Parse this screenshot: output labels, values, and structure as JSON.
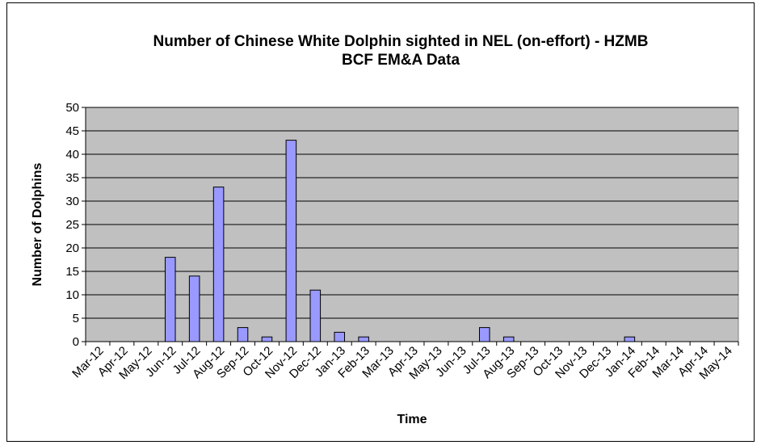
{
  "chart_data": {
    "type": "bar",
    "title": [
      "Number of Chinese White Dolphin sighted in NEL (on-effort) - HZMB",
      "BCF EM&A Data"
    ],
    "xlabel": "Time",
    "ylabel": "Number of Dolphins",
    "ylim": [
      0,
      50
    ],
    "yticks": [
      0,
      5,
      10,
      15,
      20,
      25,
      30,
      35,
      40,
      45,
      50
    ],
    "grid": true,
    "legend": "none",
    "plot_background": "#c0c0c0",
    "bar_color": "#9999ff",
    "categories": [
      "Mar-12",
      "Apr-12",
      "May-12",
      "Jun-12",
      "Jul-12",
      "Aug-12",
      "Sep-12",
      "Oct-12",
      "Nov-12",
      "Dec-12",
      "Jan-13",
      "Feb-13",
      "Mar-13",
      "Apr-13",
      "May-13",
      "Jun-13",
      "Jul-13",
      "Aug-13",
      "Sep-13",
      "Oct-13",
      "Nov-13",
      "Dec-13",
      "Jan-14",
      "Feb-14",
      "Mar-14",
      "Apr-14",
      "May-14"
    ],
    "values": [
      0,
      0,
      0,
      18,
      14,
      33,
      3,
      1,
      43,
      11,
      2,
      1,
      0,
      0,
      0,
      0,
      3,
      1,
      0,
      0,
      0,
      0,
      1,
      0,
      0,
      0,
      0
    ]
  }
}
